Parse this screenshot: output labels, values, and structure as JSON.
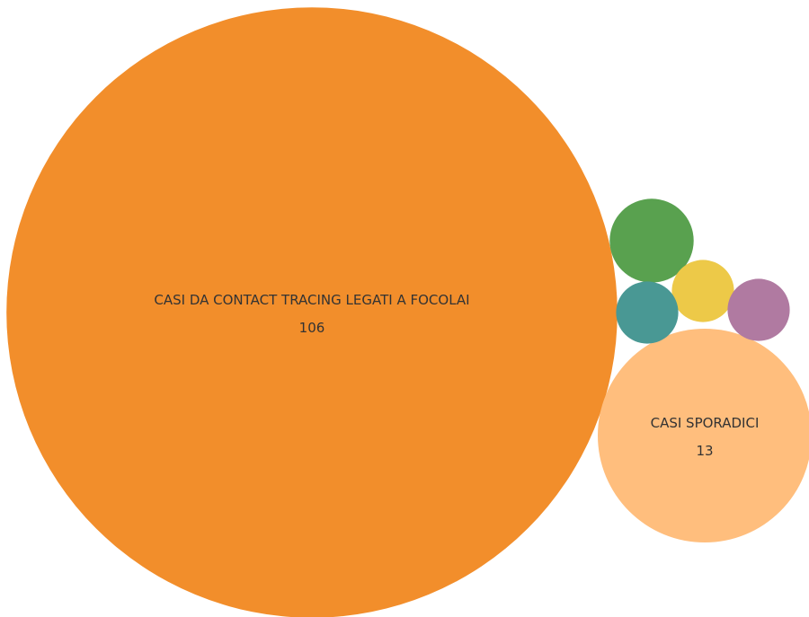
{
  "chart_data": {
    "type": "bubble",
    "title": "",
    "items": [
      {
        "label": "CASI DA CONTACT TRACING LEGATI A FOCOLAI",
        "value": 106,
        "value_label": "106",
        "color": "#F28E2B",
        "show_label": true
      },
      {
        "label": "CASI SPORADICI",
        "value": 13,
        "value_label": "13",
        "color": "#FFBE7D",
        "show_label": true
      },
      {
        "label": "",
        "value": 2,
        "color": "#59A14F",
        "show_label": false
      },
      {
        "label": "",
        "value": 1.1,
        "color": "#EDC948",
        "show_label": false
      },
      {
        "label": "",
        "value": 1.1,
        "color": "#B07AA1",
        "show_label": false
      },
      {
        "label": "",
        "value": 1.1,
        "color": "#499894",
        "show_label": false
      }
    ]
  }
}
